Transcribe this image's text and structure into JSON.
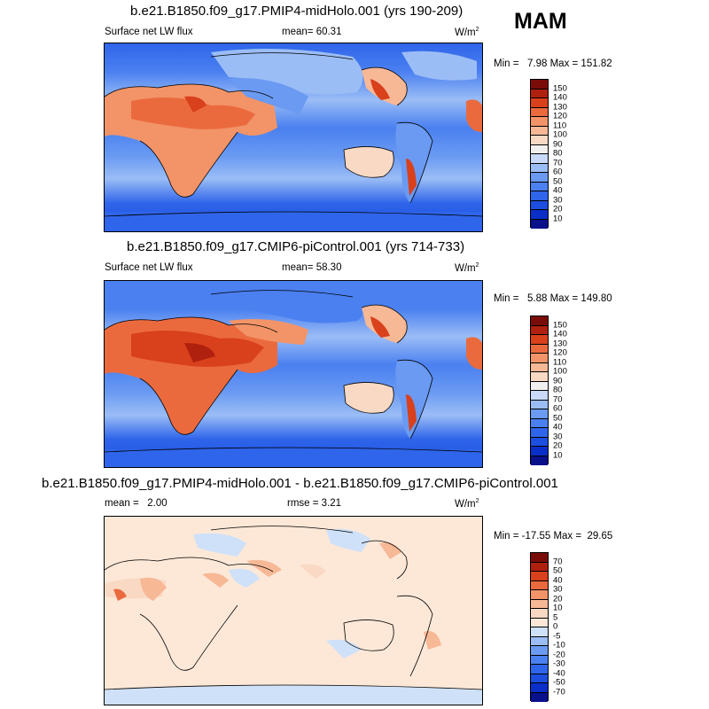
{
  "season": "MAM",
  "panels": [
    {
      "title": "b.e21.B1850.f09_g17.PMIP4-midHolo.001 (yrs 190-209)",
      "left_label": "Surface net LW flux",
      "mean_label": "mean=",
      "mean_value": "60.31",
      "units": "W/m",
      "units_exp": "2",
      "minmax": "Min =   7.98 Max = 151.82"
    },
    {
      "title": "b.e21.B1850.f09_g17.CMIP6-piControl.001 (yrs 714-733)",
      "left_label": "Surface net LW flux",
      "mean_label": "mean=",
      "mean_value": "58.30",
      "units": "W/m",
      "units_exp": "2",
      "minmax": "Min =   5.88 Max = 149.80"
    },
    {
      "title": "b.e21.B1850.f09_g17.PMIP4-midHolo.001 - b.e21.B1850.f09_g17.CMIP6-piControl.001",
      "left_label": "mean =   2.00",
      "mean_label": "rmse =",
      "mean_value": "3.21",
      "units": "W/m",
      "units_exp": "2",
      "minmax": "Min = -17.55 Max =  29.65"
    }
  ],
  "chart_data": [
    {
      "type": "heatmap",
      "title": "b.e21.B1850.f09_g17.PMIP4-midHolo.001 (yrs 190-209)",
      "variable": "Surface net LW flux",
      "units": "W/m2",
      "mean": 60.31,
      "min": 7.98,
      "max": 151.82,
      "colorbar_levels": [
        10,
        20,
        30,
        40,
        50,
        60,
        70,
        80,
        90,
        100,
        110,
        120,
        130,
        140,
        150
      ],
      "colorbar_colors": [
        "#08108c",
        "#0a2ec8",
        "#1c4ee0",
        "#2f65ea",
        "#4a80f0",
        "#6a9af2",
        "#9bbdf6",
        "#c8daf8",
        "#f2f0ee",
        "#fad9c4",
        "#f7b896",
        "#f29468",
        "#ea6a3e",
        "#d9401c",
        "#b0200e",
        "#7a0c08"
      ]
    },
    {
      "type": "heatmap",
      "title": "b.e21.B1850.f09_g17.CMIP6-piControl.001 (yrs 714-733)",
      "variable": "Surface net LW flux",
      "units": "W/m2",
      "mean": 58.3,
      "min": 5.88,
      "max": 149.8,
      "colorbar_levels": [
        10,
        20,
        30,
        40,
        50,
        60,
        70,
        80,
        90,
        100,
        110,
        120,
        130,
        140,
        150
      ],
      "colorbar_colors": [
        "#08108c",
        "#0a2ec8",
        "#1c4ee0",
        "#2f65ea",
        "#4a80f0",
        "#6a9af2",
        "#9bbdf6",
        "#c8daf8",
        "#f2f0ee",
        "#fad9c4",
        "#f7b896",
        "#f29468",
        "#ea6a3e",
        "#d9401c",
        "#b0200e",
        "#7a0c08"
      ]
    },
    {
      "type": "heatmap",
      "title": "b.e21.B1850.f09_g17.PMIP4-midHolo.001 - b.e21.B1850.f09_g17.CMIP6-piControl.001",
      "units": "W/m2",
      "mean": 2.0,
      "rmse": 3.21,
      "min": -17.55,
      "max": 29.65,
      "colorbar_levels": [
        -70,
        -50,
        -40,
        -30,
        -20,
        -10,
        -5,
        0,
        5,
        10,
        20,
        30,
        40,
        50,
        70
      ],
      "colorbar_colors": [
        "#08108c",
        "#0a2ec8",
        "#1c4ee0",
        "#2f65ea",
        "#4a80f0",
        "#6a9af2",
        "#9bbdf6",
        "#cfe1f8",
        "#fde8d8",
        "#fad9c4",
        "#f7b896",
        "#f29468",
        "#ea6a3e",
        "#d9401c",
        "#b0200e",
        "#7a0c08"
      ]
    }
  ]
}
